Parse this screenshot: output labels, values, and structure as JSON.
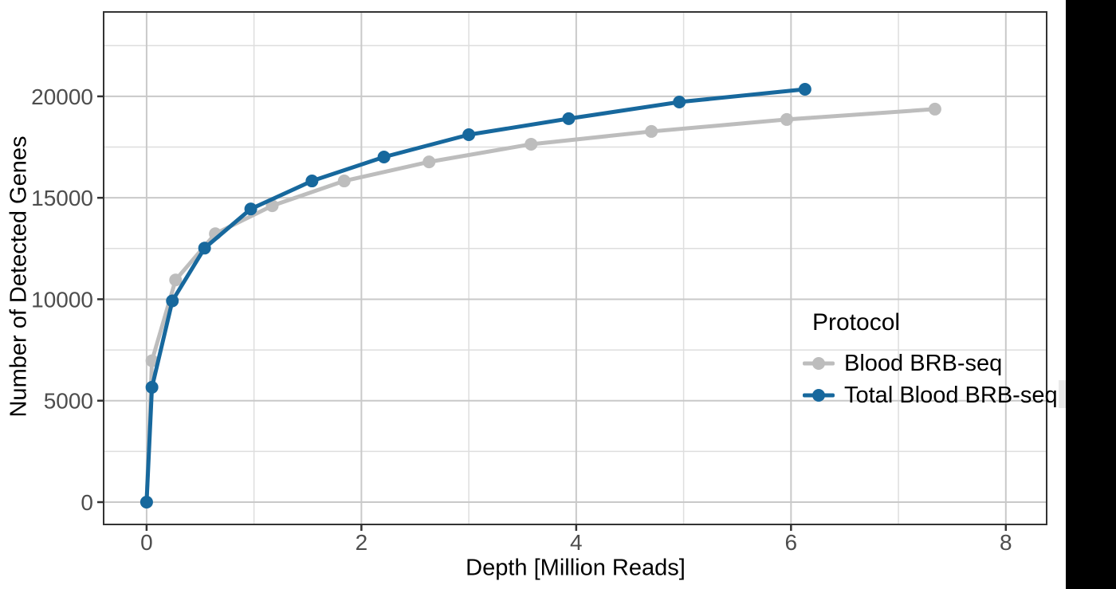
{
  "figure": {
    "background": "#ffffff",
    "right_black_band": "#000000",
    "scroll_strip_color": "#e9e9e9"
  },
  "chart_data": {
    "type": "line",
    "title": "",
    "xlabel": "Depth [Million Reads]",
    "ylabel": "Number of Detected Genes",
    "xlim": [
      -0.4,
      8.38
    ],
    "ylim": [
      -1100,
      24160
    ],
    "grid": "major-and-minor",
    "panel_border": true,
    "x_ticks": {
      "major": [
        0,
        2,
        4,
        6,
        8
      ],
      "labels": [
        "0",
        "2",
        "4",
        "6",
        "8"
      ],
      "minor": [
        1,
        3,
        5,
        7
      ]
    },
    "y_ticks": {
      "major": [
        0,
        5000,
        10000,
        15000,
        20000
      ],
      "labels": [
        "0",
        "5000",
        "10000",
        "15000",
        "20000"
      ],
      "minor": [
        2500,
        7500,
        12500,
        17500,
        22500
      ]
    },
    "legend": {
      "title": "Protocol",
      "position": "inside-right"
    },
    "style": {
      "grid_major_color": "#c9c9c9",
      "grid_minor_color": "#dedede",
      "border_color": "#333333",
      "tick_color": "#333333",
      "tick_label_color": "#4d4d4d",
      "line_width": 5,
      "point_radius": 8
    },
    "series": [
      {
        "name": "Blood BRB-seq",
        "color": "#BDBDBD",
        "x": [
          0,
          0.05,
          0.27,
          0.64,
          1.17,
          1.84,
          2.63,
          3.58,
          4.7,
          5.96,
          7.34
        ],
        "y": [
          0,
          6970,
          10950,
          13230,
          14610,
          15830,
          16770,
          17640,
          18270,
          18860,
          19370
        ]
      },
      {
        "name": "Total Blood BRB-seq",
        "color": "#17689D",
        "x": [
          0,
          0.05,
          0.24,
          0.54,
          0.97,
          1.54,
          2.21,
          3.0,
          3.93,
          4.96,
          6.13
        ],
        "y": [
          0,
          5660,
          9920,
          12520,
          14450,
          15830,
          17010,
          18110,
          18900,
          19720,
          20350
        ]
      }
    ]
  }
}
